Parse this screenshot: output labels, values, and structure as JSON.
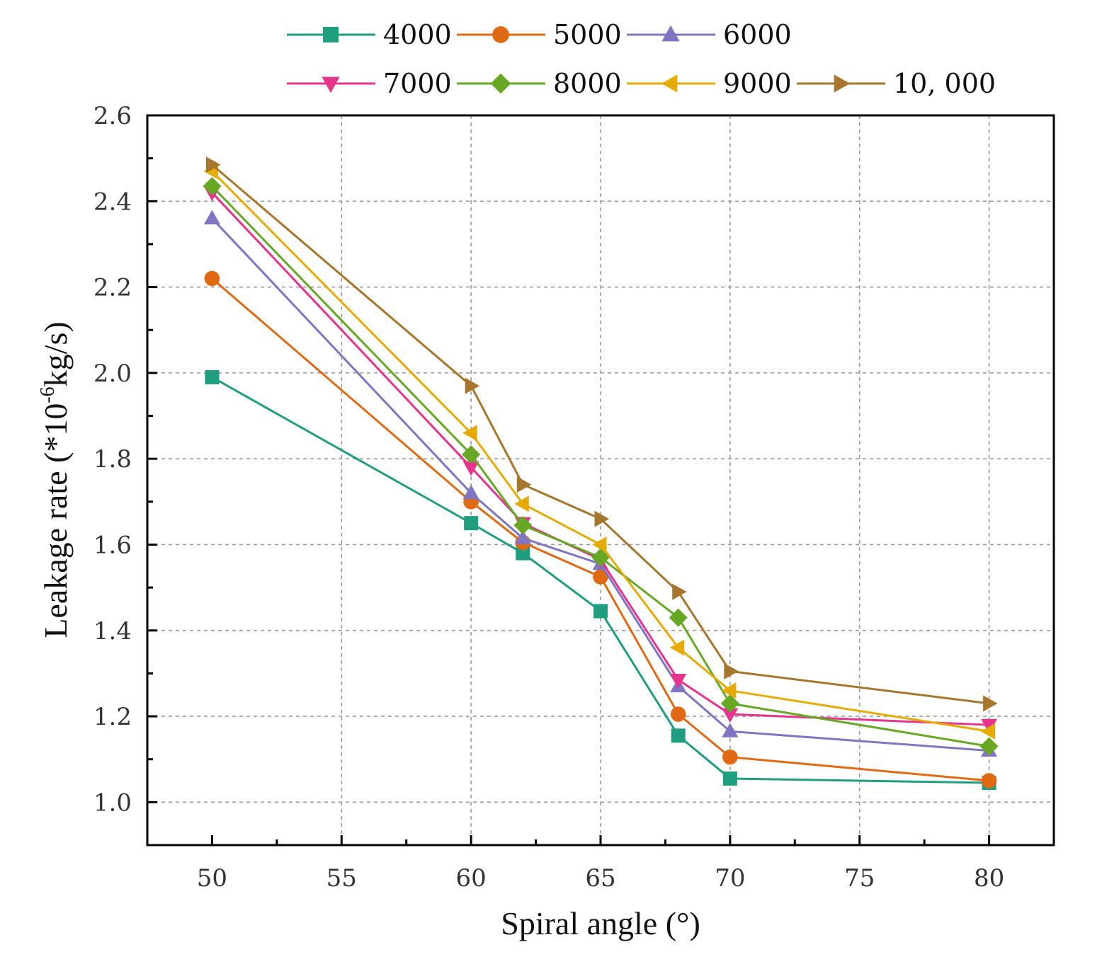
{
  "chart_data": {
    "type": "line",
    "xlabel": "Spiral angle (°)",
    "ylabel_main": "Leakage rate (*10",
    "ylabel_exp": "-6",
    "ylabel_unit": "kg/s)",
    "xlim": [
      47.5,
      82.5
    ],
    "ylim": [
      0.9,
      2.6
    ],
    "x_ticks": [
      50,
      55,
      60,
      65,
      70,
      75,
      80
    ],
    "x_tick_labels": [
      "50",
      "55",
      "60",
      "65",
      "70",
      "75",
      "80"
    ],
    "y_ticks": [
      1.0,
      1.2,
      1.4,
      1.6,
      1.8,
      2.0,
      2.2,
      2.4,
      2.6
    ],
    "y_tick_labels": [
      "1.0",
      "1.2",
      "1.4",
      "1.6",
      "1.8",
      "2.0",
      "2.2",
      "2.4",
      "2.6"
    ],
    "x_minor_ticks": [
      52.5,
      57.5,
      62.5,
      67.5,
      72.5,
      77.5
    ],
    "y_minor_ticks": [
      1.1,
      1.3,
      1.5,
      1.7,
      1.9,
      2.1,
      2.3,
      2.5
    ],
    "grid": true,
    "legend_position": "top",
    "x": [
      50,
      60,
      62,
      65,
      68,
      70,
      80
    ],
    "series": [
      {
        "name": "4000",
        "color": "#1f9e7f",
        "marker": "square",
        "values": [
          1.99,
          1.65,
          1.58,
          1.445,
          1.155,
          1.055,
          1.045
        ]
      },
      {
        "name": "5000",
        "color": "#e06a14",
        "marker": "circle",
        "values": [
          2.22,
          1.7,
          1.605,
          1.525,
          1.205,
          1.105,
          1.05
        ]
      },
      {
        "name": "6000",
        "color": "#8075c2",
        "marker": "triangle-up",
        "values": [
          2.36,
          1.72,
          1.615,
          1.555,
          1.27,
          1.165,
          1.12
        ]
      },
      {
        "name": "7000",
        "color": "#e6338c",
        "marker": "triangle-down",
        "values": [
          2.42,
          1.78,
          1.65,
          1.565,
          1.285,
          1.205,
          1.18
        ]
      },
      {
        "name": "8000",
        "color": "#66a823",
        "marker": "diamond",
        "values": [
          2.435,
          1.81,
          1.645,
          1.57,
          1.43,
          1.23,
          1.13
        ]
      },
      {
        "name": "9000",
        "color": "#e6ab02",
        "marker": "triangle-left",
        "values": [
          2.47,
          1.86,
          1.695,
          1.6,
          1.36,
          1.26,
          1.165
        ]
      },
      {
        "name": "10, 000",
        "color": "#a6762c",
        "marker": "triangle-right",
        "values": [
          2.485,
          1.97,
          1.74,
          1.66,
          1.49,
          1.305,
          1.23
        ]
      }
    ]
  }
}
